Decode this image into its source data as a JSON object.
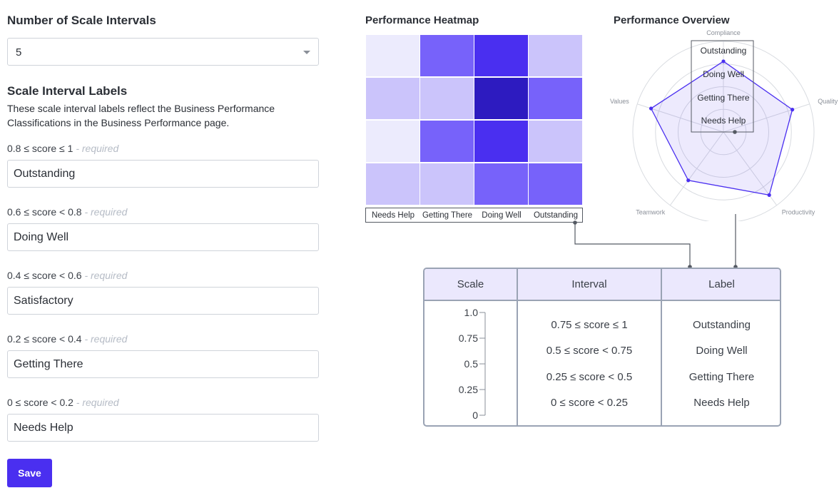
{
  "form": {
    "intervals_title": "Number of Scale Intervals",
    "intervals_value": "5",
    "labels_title": "Scale Interval Labels",
    "labels_desc_line1": "These scale interval labels reflect the Business Performance",
    "labels_desc_line2": "Classifications in the Business Performance page.",
    "required_text": "- required",
    "fields": [
      {
        "range": "0.8 ≤ score ≤ 1",
        "value": "Outstanding"
      },
      {
        "range": "0.6 ≤ score < 0.8",
        "value": "Doing Well"
      },
      {
        "range": "0.4 ≤ score < 0.6",
        "value": "Satisfactory"
      },
      {
        "range": "0.2 ≤ score < 0.4",
        "value": "Getting There"
      },
      {
        "range": "0 ≤ score < 0.2",
        "value": "Needs Help"
      }
    ],
    "save_label": "Save"
  },
  "heatmap": {
    "title": "Performance Heatmap",
    "x_labels": [
      "Needs Help",
      "Getting There",
      "Doing Well",
      "Outstanding"
    ],
    "colors": [
      [
        "#ecebfd",
        "#7762fa",
        "#4a2ff0",
        "#cbc4fb"
      ],
      [
        "#cbc4fb",
        "#cbc4fb",
        "#2d1bc0",
        "#7762fa"
      ],
      [
        "#ecebfd",
        "#7762fa",
        "#4a2ff0",
        "#cbc4fb"
      ],
      [
        "#cbc4fb",
        "#cbc4fb",
        "#7762fa",
        "#7762fa"
      ]
    ]
  },
  "radar": {
    "title": "Performance Overview",
    "axes": [
      "Compliance",
      "Quality",
      "Productivity",
      "Teamwork",
      "Values"
    ],
    "values": [
      0.78,
      0.8,
      0.86,
      0.66,
      0.84
    ],
    "ring_labels": [
      "Outstanding",
      "Doing Well",
      "Getting There",
      "Needs Help"
    ],
    "accent": "#4a2ff0"
  },
  "table": {
    "headers": [
      "Scale",
      "Interval",
      "Label"
    ],
    "scale_ticks": [
      "1.0",
      "0.75",
      "0.5",
      "0.25",
      "0"
    ],
    "intervals": [
      "0.75 ≤ score ≤ 1",
      "0.5 ≤ score < 0.75",
      "0.25 ≤ score < 0.5",
      "0 ≤ score < 0.25"
    ],
    "labels": [
      "Outstanding",
      "Doing Well",
      "Getting There",
      "Needs Help"
    ]
  }
}
